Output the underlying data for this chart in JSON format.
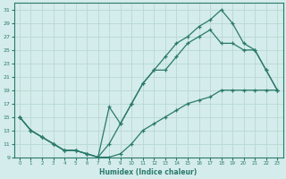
{
  "xlabel": "Humidex (Indice chaleur)",
  "xlim": [
    -0.5,
    23.5
  ],
  "ylim": [
    9,
    32
  ],
  "yticks": [
    9,
    11,
    13,
    15,
    17,
    19,
    21,
    23,
    25,
    27,
    29,
    31
  ],
  "xticks": [
    0,
    1,
    2,
    3,
    4,
    5,
    6,
    7,
    8,
    9,
    10,
    11,
    12,
    13,
    14,
    15,
    16,
    17,
    18,
    19,
    20,
    21,
    22,
    23
  ],
  "color": "#2a7a6a",
  "bg_color": "#d4eceb",
  "grid_color": "#b8d8d4",
  "line1_x": [
    0,
    1,
    2,
    3,
    4,
    5,
    6,
    7,
    8,
    9,
    10,
    11,
    12,
    13,
    14,
    15,
    16,
    17,
    18,
    19,
    20,
    21,
    22,
    23
  ],
  "line1_y": [
    15,
    13,
    12,
    11,
    10,
    10,
    9.5,
    9,
    9,
    9.5,
    11,
    13,
    14,
    15,
    16,
    17,
    17.5,
    18,
    19,
    19,
    19,
    19,
    19,
    19
  ],
  "line2_x": [
    0,
    1,
    2,
    3,
    4,
    5,
    6,
    7,
    8,
    9,
    10,
    11,
    12,
    13,
    14,
    15,
    16,
    17,
    18,
    19,
    20,
    21,
    22,
    23
  ],
  "line2_y": [
    15,
    13,
    12,
    11,
    10,
    10,
    9.5,
    9,
    11,
    14,
    17,
    20,
    22,
    22,
    24,
    26,
    27,
    28,
    26,
    26,
    25,
    25,
    22,
    19
  ],
  "line3_x": [
    0,
    1,
    2,
    3,
    4,
    5,
    6,
    7,
    8,
    9,
    10,
    11,
    12,
    13,
    14,
    15,
    16,
    17,
    18,
    19,
    20,
    21,
    22,
    23
  ],
  "line3_y": [
    15,
    13,
    12,
    11,
    10,
    10,
    9.5,
    9,
    16.5,
    14,
    17,
    20,
    22,
    24,
    26,
    27,
    28.5,
    29.5,
    31,
    29,
    26,
    25,
    22,
    19
  ]
}
